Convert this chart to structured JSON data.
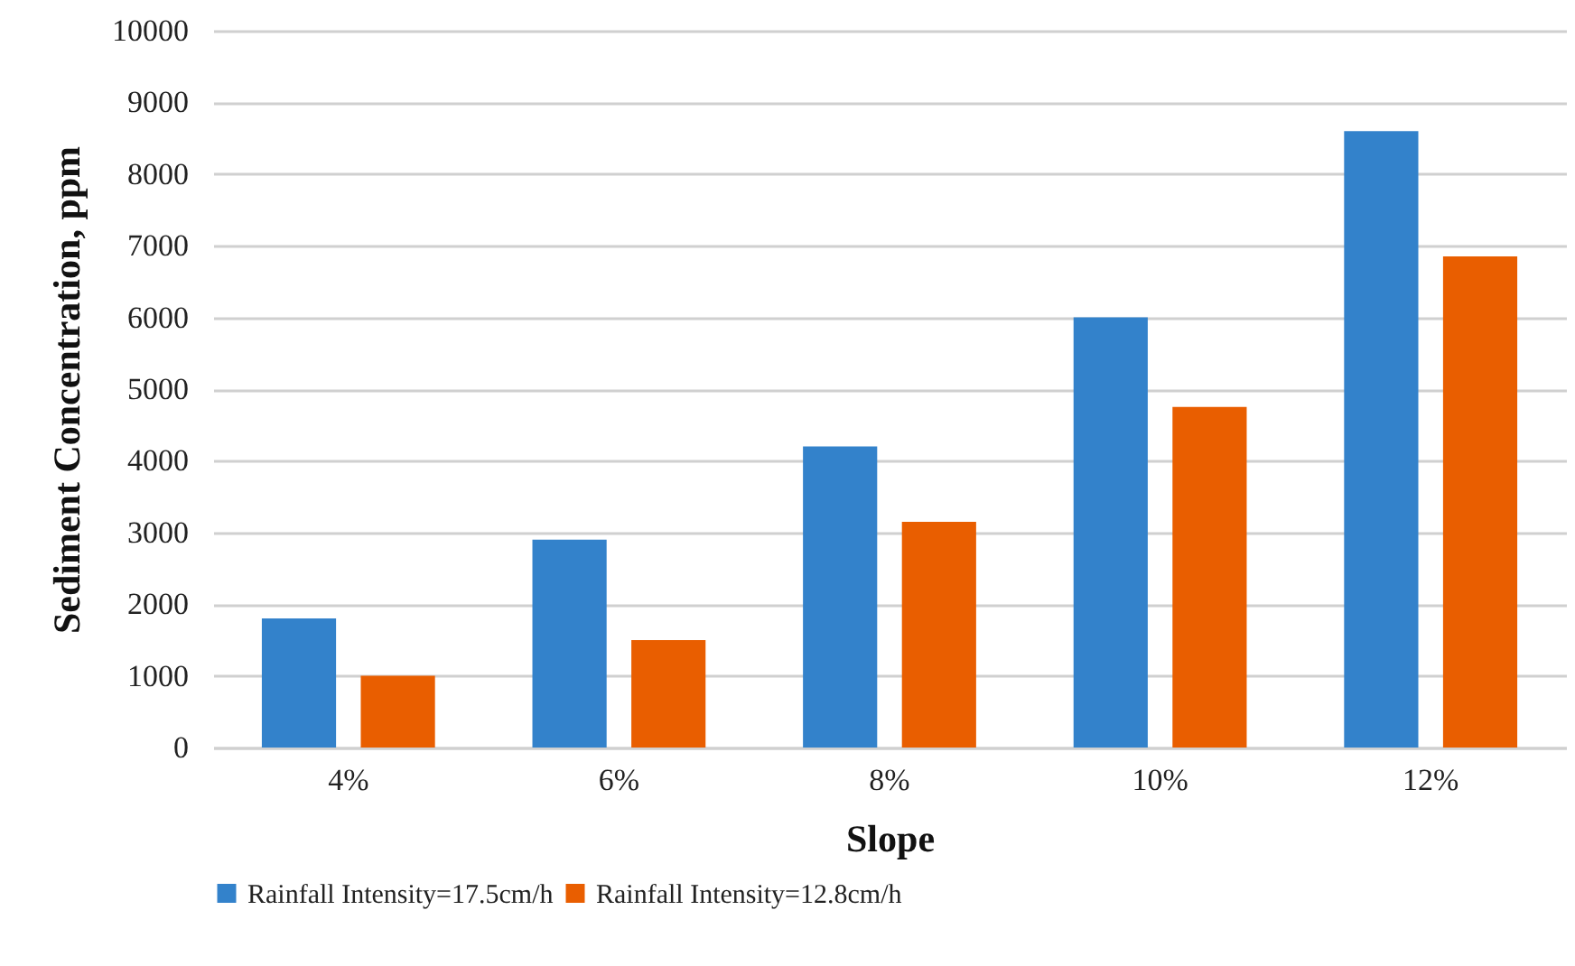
{
  "chart_data": {
    "type": "bar",
    "xlabel": "Slope",
    "ylabel": "Sediment Concentration, ppm",
    "categories": [
      "4%",
      "6%",
      "8%",
      "10%",
      "12%"
    ],
    "series": [
      {
        "name": "Rainfall Intensity=17.5cm/h",
        "color": "#3382cb",
        "values": [
          1800,
          2900,
          4200,
          6000,
          8600
        ]
      },
      {
        "name": "Rainfall Intensity=12.8cm/h",
        "color": "#e95e00",
        "values": [
          1000,
          1500,
          3150,
          4750,
          6850
        ]
      }
    ],
    "ylim": [
      0,
      10000
    ],
    "yticks": [
      0,
      1000,
      2000,
      3000,
      4000,
      5000,
      6000,
      7000,
      8000,
      9000,
      10000
    ],
    "grid": "y",
    "legend": "bottom"
  }
}
